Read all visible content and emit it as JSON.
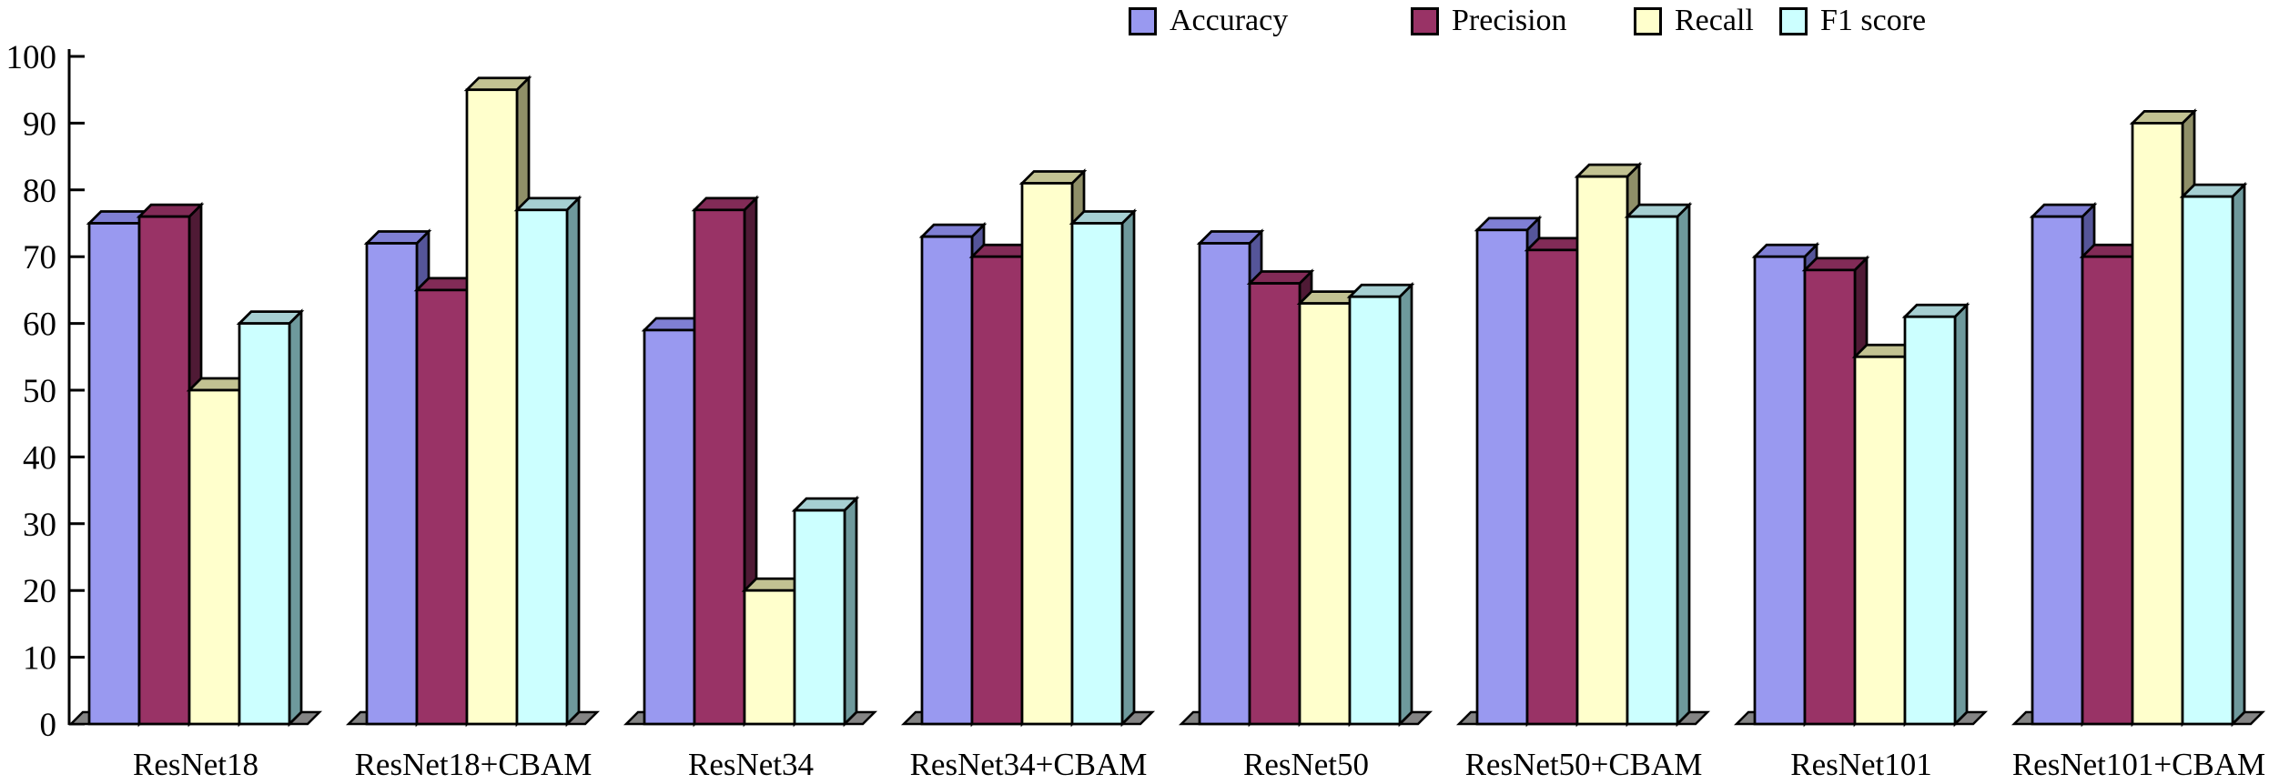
{
  "chart_data": {
    "type": "bar",
    "variant": "3d-grouped-column",
    "title": "",
    "xlabel": "",
    "ylabel": "",
    "grid": false,
    "legend_position": "top",
    "ylim": [
      0,
      100
    ],
    "ytick_step": 10,
    "ytick_labels": [
      "0",
      "10",
      "20",
      "30",
      "40",
      "50",
      "60",
      "70",
      "80",
      "90",
      "100"
    ],
    "categories": [
      "ResNet18",
      "ResNet18+CBAM",
      "ResNet34",
      "ResNet34+CBAM",
      "ResNet50",
      "ResNet50+CBAM",
      "ResNet101",
      "ResNet101+CBAM"
    ],
    "series": [
      {
        "name": "Accuracy",
        "color": "#9999F0",
        "top_color": "#7F7FD4",
        "side_color": "#555599",
        "values": [
          75,
          72,
          59,
          73,
          72,
          74,
          70,
          76
        ]
      },
      {
        "name": "Precision",
        "color": "#993366",
        "top_color": "#822B57",
        "side_color": "#4F1A35",
        "values": [
          76,
          65,
          77,
          70,
          66,
          71,
          68,
          70
        ]
      },
      {
        "name": "Recall",
        "color": "#FFFFCC",
        "top_color": "#C2C292",
        "side_color": "#8F8F68",
        "values": [
          50,
          95,
          20,
          81,
          63,
          82,
          55,
          90
        ]
      },
      {
        "name": "F1 score",
        "color": "#CCFFFF",
        "top_color": "#A6CFD2",
        "side_color": "#6E999C",
        "values": [
          60,
          77,
          32,
          75,
          64,
          76,
          61,
          79
        ]
      }
    ],
    "axis_color": "#000000",
    "floor_color": "#848484",
    "bar_outline_color": "#000000"
  }
}
